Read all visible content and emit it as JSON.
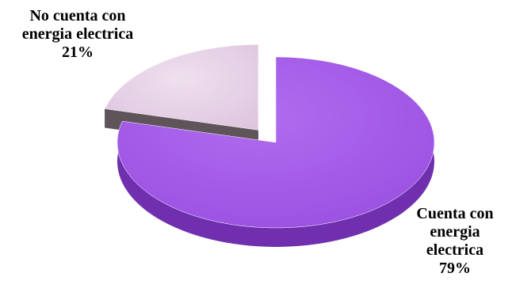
{
  "chart_data": {
    "type": "pie",
    "title": "",
    "slices": [
      {
        "label_lines": [
          "Cuenta con",
          "energia",
          "electrica"
        ],
        "percent_label": "79%",
        "value": 79,
        "color": "#a35ae6",
        "side_color": "#6f2fae"
      },
      {
        "label_lines": [
          "No cuenta con",
          "energia electrica"
        ],
        "percent_label": "21%",
        "value": 21,
        "color": "#e4cde4",
        "side_color": "#5e5459"
      }
    ],
    "style": "3d-exploded"
  }
}
